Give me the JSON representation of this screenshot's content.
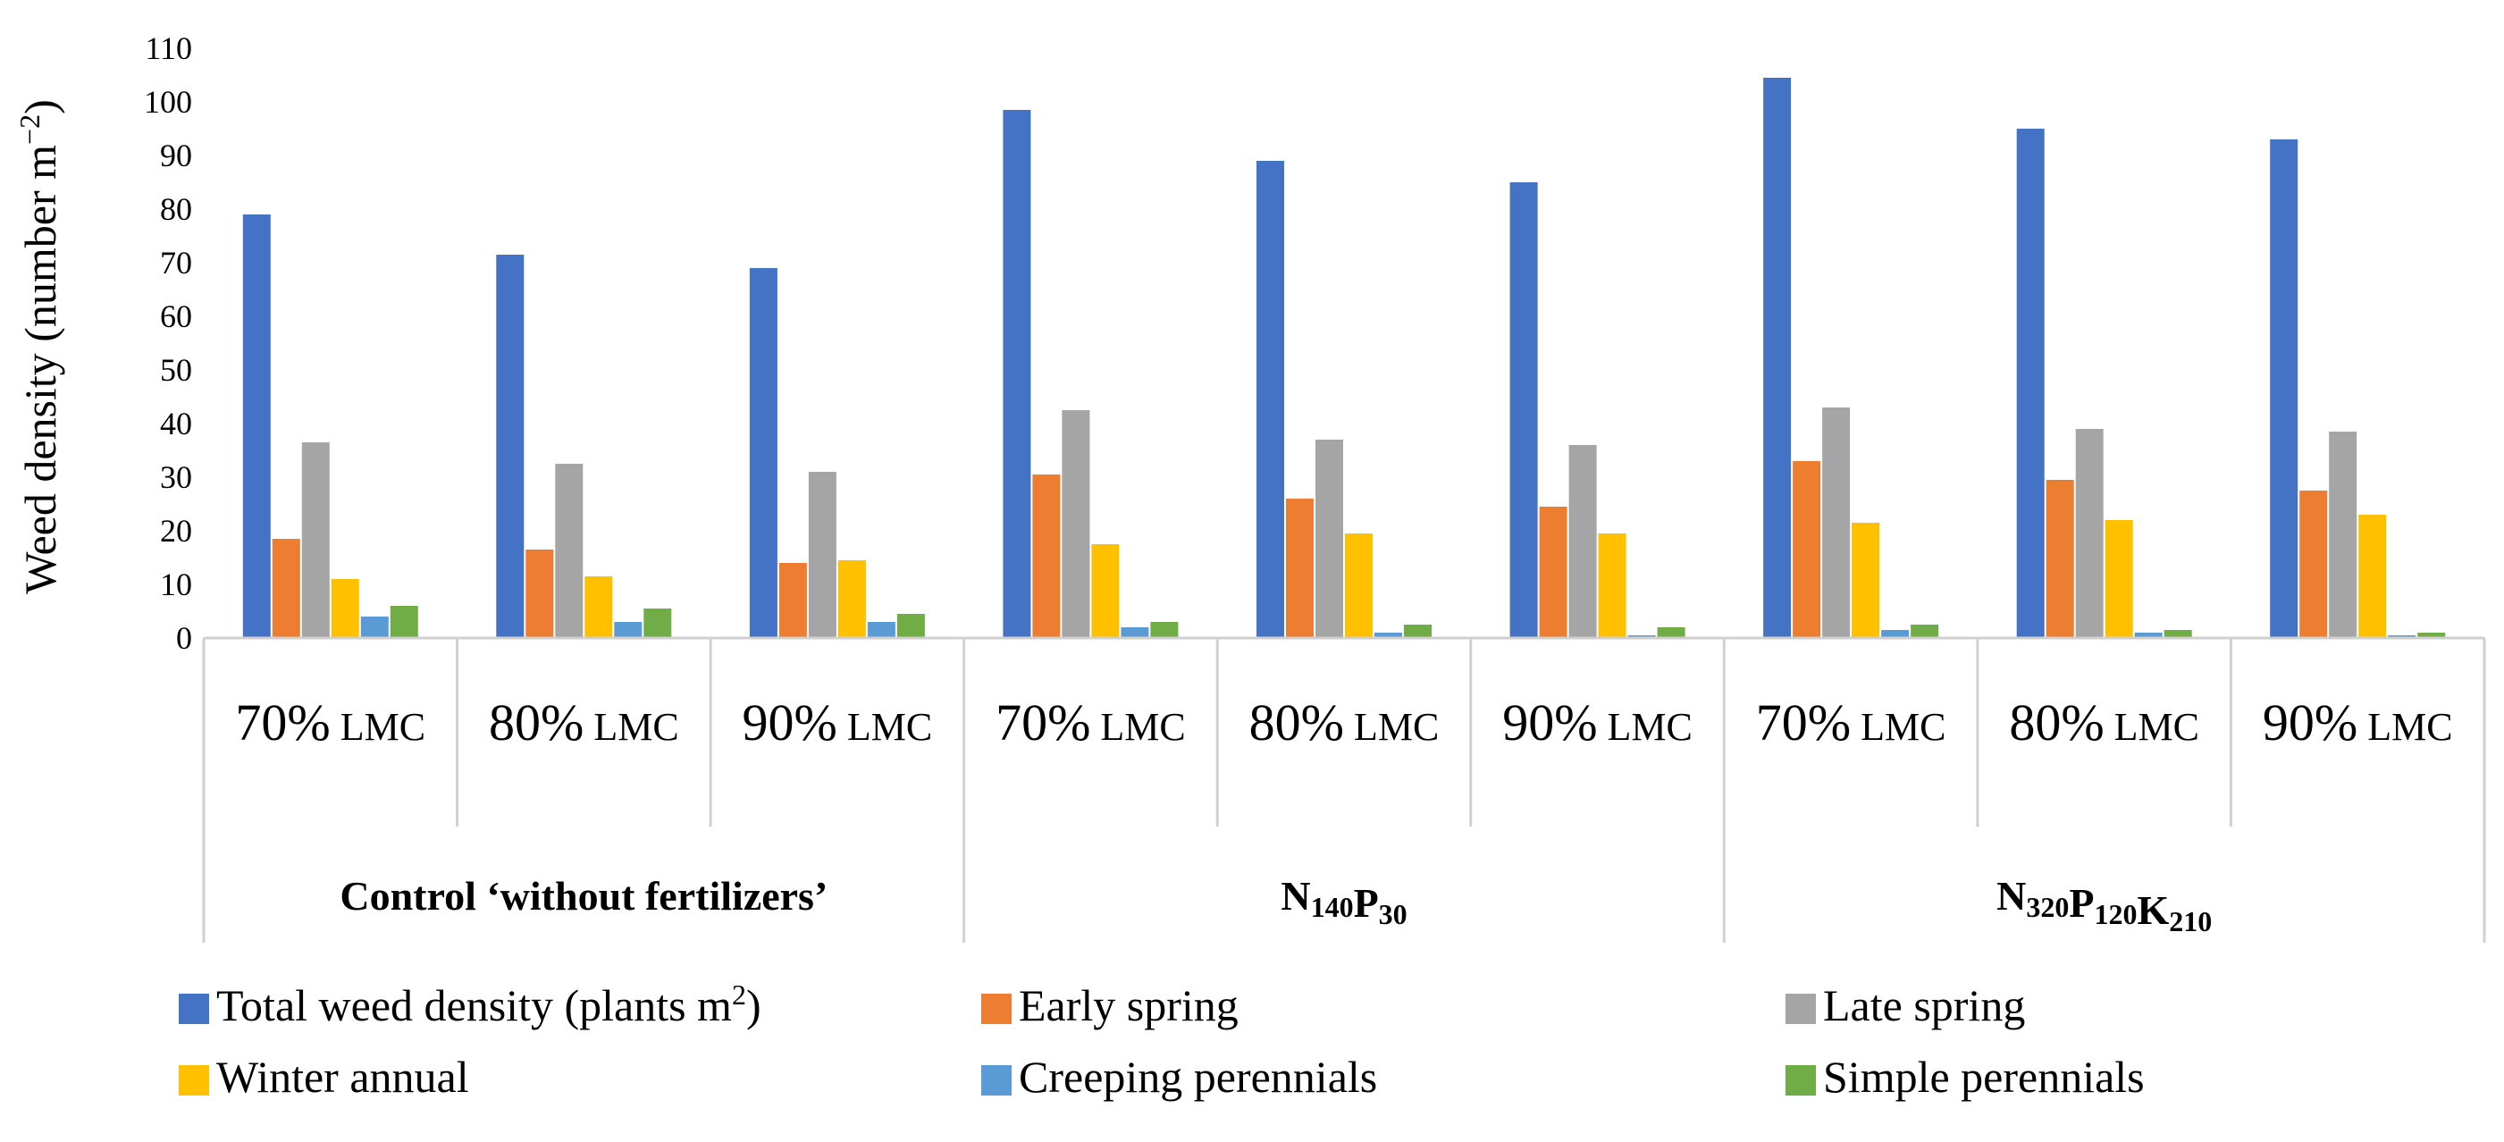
{
  "chart_data": {
    "type": "bar",
    "title": "",
    "ylabel_parts": {
      "main": "Weed density (number m",
      "sup": "−2",
      "end": ")"
    },
    "ylim": [
      0,
      110
    ],
    "yticks": [
      0,
      10,
      20,
      30,
      40,
      50,
      60,
      70,
      80,
      90,
      100,
      110
    ],
    "grid": false,
    "categories": [
      {
        "pct": "70%",
        "unit": "LMC"
      },
      {
        "pct": "80%",
        "unit": "LMC"
      },
      {
        "pct": "90%",
        "unit": "LMC"
      },
      {
        "pct": "70%",
        "unit": "LMC"
      },
      {
        "pct": "80%",
        "unit": "LMC"
      },
      {
        "pct": "90%",
        "unit": "LMC"
      },
      {
        "pct": "70%",
        "unit": "LMC"
      },
      {
        "pct": "80%",
        "unit": "LMC"
      },
      {
        "pct": "90%",
        "unit": "LMC"
      }
    ],
    "groups": [
      {
        "label": "Control ‘without fertilizers’",
        "span": 3
      },
      {
        "label_parts": [
          "N",
          "140",
          "P",
          "30"
        ],
        "span": 3
      },
      {
        "label_parts": [
          "N",
          "320",
          "P",
          "120",
          "K",
          "210"
        ],
        "span": 3
      }
    ],
    "series": [
      {
        "name": "Total weed density (plants m",
        "name_sup": "2",
        "name_end": ")",
        "color": "#4472c4",
        "values": [
          79,
          71.5,
          69,
          98.5,
          89,
          85,
          104.5,
          95,
          93
        ]
      },
      {
        "name": "Early spring",
        "color": "#ed7d31",
        "values": [
          18.5,
          16.5,
          14,
          30.5,
          26,
          24.5,
          33,
          29.5,
          27.5
        ]
      },
      {
        "name": "Late spring",
        "color": "#a5a5a5",
        "values": [
          36.5,
          32.5,
          31,
          42.5,
          37,
          36,
          43,
          39,
          38.5
        ]
      },
      {
        "name": "Winter annual",
        "color": "#ffc000",
        "values": [
          11,
          11.5,
          14.5,
          17.5,
          19.5,
          19.5,
          21.5,
          22,
          23
        ]
      },
      {
        "name": "Creeping perennials",
        "color": "#5b9bd5",
        "values": [
          4,
          3,
          3,
          2,
          1,
          0.5,
          1.5,
          1,
          0.5
        ]
      },
      {
        "name": "Simple perennials",
        "color": "#70ad47",
        "values": [
          6,
          5.5,
          4.5,
          3,
          2.5,
          2,
          2.5,
          1.5,
          1
        ]
      }
    ],
    "legend_position": "bottom"
  }
}
